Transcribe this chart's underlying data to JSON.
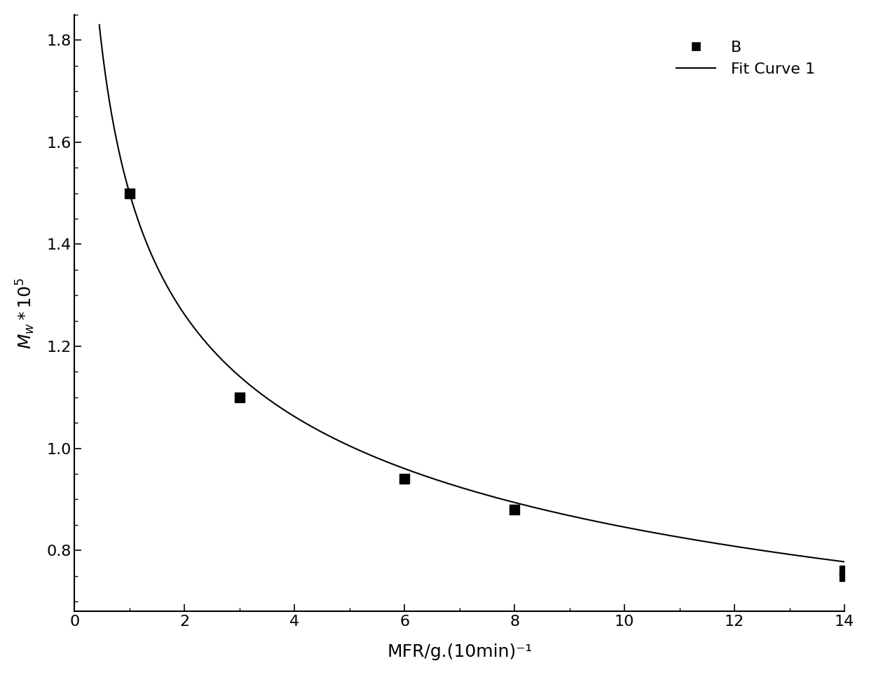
{
  "scatter_x": [
    1,
    3,
    6,
    8,
    14,
    14
  ],
  "scatter_y": [
    1.5,
    1.1,
    0.94,
    0.88,
    0.76,
    0.75
  ],
  "fit_A": 1.5,
  "fit_b": 0.249,
  "fit_x_start": 0.45,
  "fit_x_end": 14.0,
  "xlim": [
    0,
    14
  ],
  "ylim": [
    0.68,
    1.85
  ],
  "xticks": [
    0,
    2,
    4,
    6,
    8,
    10,
    12,
    14
  ],
  "yticks": [
    0.8,
    1.0,
    1.2,
    1.4,
    1.6,
    1.8
  ],
  "xlabel": "MFR/g.(10min)⁻¹",
  "ylabel_latex": "$M_w*10^5$",
  "legend_labels": [
    "B",
    "Fit Curve 1"
  ],
  "marker_color": "black",
  "line_color": "black",
  "background_color": "white",
  "marker_size": 10,
  "line_width": 1.5,
  "xlabel_fontsize": 18,
  "ylabel_fontsize": 18,
  "tick_fontsize": 16,
  "legend_fontsize": 16,
  "spine_linewidth": 1.5
}
